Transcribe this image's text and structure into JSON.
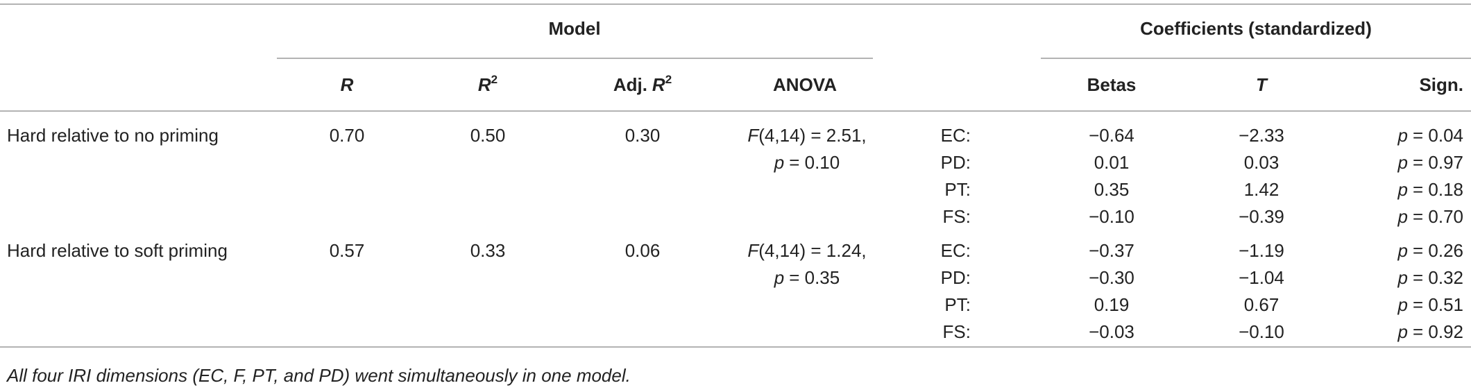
{
  "table": {
    "group_headers": [
      "Model",
      "Coefficients (standardized)"
    ],
    "column_headers": {
      "r": "R",
      "r2": {
        "base": "R",
        "sup": "2"
      },
      "adj_r2": {
        "prefix": "Adj.",
        "base": "R",
        "sup": "2"
      },
      "anova": "ANOVA",
      "betas": "Betas",
      "t": "T",
      "sign": "Sign."
    },
    "rows": [
      {
        "label": "Hard relative to no priming",
        "r": "0.70",
        "r2": "0.50",
        "adj_r2": "0.30",
        "anova": {
          "stat": "F",
          "line1": "(4,14) = 2.51,",
          "p_sym": "p",
          "line2": "= 0.10"
        },
        "coefficients": [
          {
            "predictor": "EC:",
            "beta": "−0.64",
            "t": "−2.33",
            "p_sym": "p",
            "sign": "= 0.04"
          },
          {
            "predictor": "PD:",
            "beta": "0.01",
            "t": "0.03",
            "p_sym": "p",
            "sign": "= 0.97"
          },
          {
            "predictor": "PT:",
            "beta": "0.35",
            "t": "1.42",
            "p_sym": "p",
            "sign": "= 0.18"
          },
          {
            "predictor": "FS:",
            "beta": "−0.10",
            "t": "−0.39",
            "p_sym": "p",
            "sign": "= 0.70"
          }
        ]
      },
      {
        "label": "Hard relative to soft priming",
        "r": "0.57",
        "r2": "0.33",
        "adj_r2": "0.06",
        "anova": {
          "stat": "F",
          "line1": "(4,14) = 1.24,",
          "p_sym": "p",
          "line2": "= 0.35"
        },
        "coefficients": [
          {
            "predictor": "EC:",
            "beta": "−0.37",
            "t": "−1.19",
            "p_sym": "p",
            "sign": "= 0.26"
          },
          {
            "predictor": "PD:",
            "beta": "−0.30",
            "t": "−1.04",
            "p_sym": "p",
            "sign": "= 0.32"
          },
          {
            "predictor": "PT:",
            "beta": "0.19",
            "t": "0.67",
            "p_sym": "p",
            "sign": "= 0.51"
          },
          {
            "predictor": "FS:",
            "beta": "−0.03",
            "t": "−0.10",
            "p_sym": "p",
            "sign": "= 0.92"
          }
        ]
      }
    ],
    "footnote": "All four IRI dimensions (EC, F, PT, and PD) went simultaneously in one model."
  }
}
